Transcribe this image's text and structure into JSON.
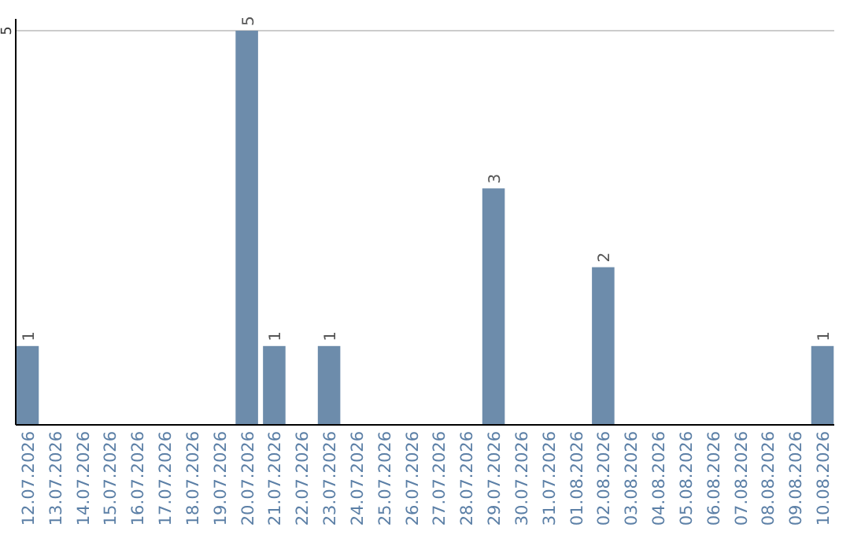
{
  "chart_data": {
    "type": "bar",
    "categories": [
      "12.07.2026",
      "13.07.2026",
      "14.07.2026",
      "15.07.2026",
      "16.07.2026",
      "17.07.2026",
      "18.07.2026",
      "19.07.2026",
      "20.07.2026",
      "21.07.2026",
      "22.07.2026",
      "23.07.2026",
      "24.07.2026",
      "25.07.2026",
      "26.07.2026",
      "27.07.2026",
      "28.07.2026",
      "29.07.2026",
      "30.07.2026",
      "31.07.2026",
      "01.08.2026",
      "02.08.2026",
      "03.08.2026",
      "04.08.2026",
      "05.08.2026",
      "06.08.2026",
      "07.08.2026",
      "08.08.2026",
      "09.08.2026",
      "10.08.2026"
    ],
    "values": [
      1,
      0,
      0,
      0,
      0,
      0,
      0,
      0,
      5,
      1,
      0,
      1,
      0,
      0,
      0,
      0,
      0,
      3,
      0,
      0,
      0,
      2,
      0,
      0,
      0,
      0,
      0,
      0,
      0,
      1
    ],
    "value_labels": [
      "1",
      null,
      null,
      null,
      null,
      null,
      null,
      null,
      "5",
      "1",
      null,
      "1",
      null,
      null,
      null,
      null,
      null,
      "3",
      null,
      null,
      null,
      "2",
      null,
      null,
      null,
      null,
      null,
      null,
      null,
      "1"
    ],
    "color": "#6d8cab",
    "ylim": [
      0,
      5.15
    ],
    "yticks": [
      5
    ],
    "grid": "y"
  }
}
